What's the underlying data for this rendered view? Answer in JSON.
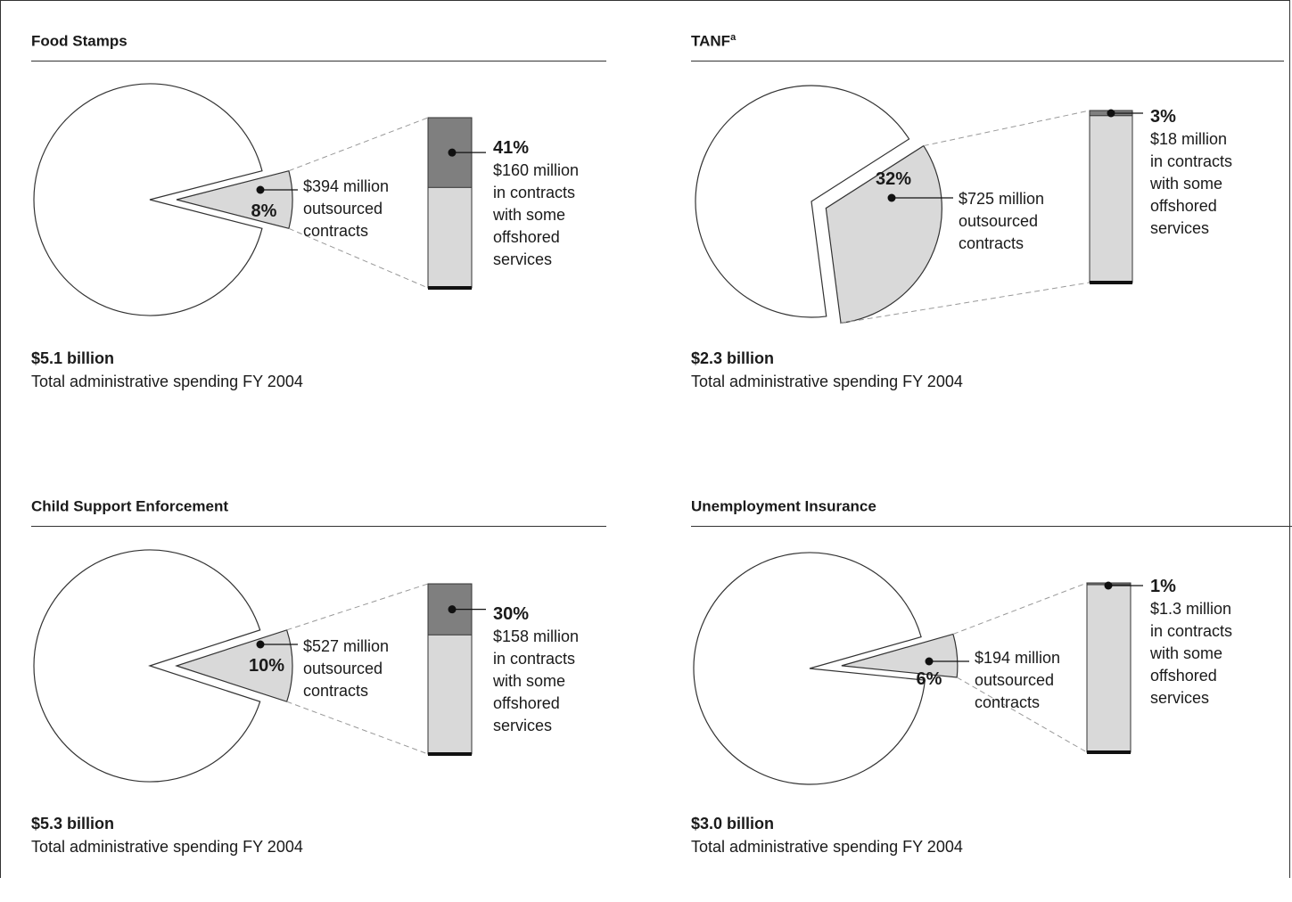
{
  "chart_data": [
    {
      "type": "pie",
      "title": "Food Stamps",
      "title_superscript": "",
      "total": "$5.1 billion",
      "caption": "Total administrative spending FY 2004",
      "slice_percent": 8,
      "slice_pct_label": "8%",
      "slice_label_lines": [
        "$394 million",
        "outsourced",
        "contracts"
      ],
      "bar_percent": 41,
      "bar_pct_label": "41%",
      "bar_label_lines": [
        "$160 million",
        "in contracts",
        "with some",
        "offshored",
        "services"
      ]
    },
    {
      "type": "pie",
      "title": "TANF",
      "title_superscript": "a",
      "total": "$2.3 billion",
      "caption": "Total administrative spending FY 2004",
      "slice_percent": 32,
      "slice_pct_label": "32%",
      "slice_label_lines": [
        "$725 million",
        "outsourced",
        "contracts"
      ],
      "bar_percent": 3,
      "bar_pct_label": "3%",
      "bar_label_lines": [
        "$18 million",
        "in contracts",
        "with some",
        "offshored",
        "services"
      ]
    },
    {
      "type": "pie",
      "title": "Child Support Enforcement",
      "title_superscript": "",
      "total": "$5.3 billion",
      "caption": "Total administrative spending FY 2004",
      "slice_percent": 10,
      "slice_pct_label": "10%",
      "slice_label_lines": [
        "$527 million",
        "outsourced",
        "contracts"
      ],
      "bar_percent": 30,
      "bar_pct_label": "30%",
      "bar_label_lines": [
        "$158 million",
        "in contracts",
        "with some",
        "offshored",
        "services"
      ]
    },
    {
      "type": "pie",
      "title": "Unemployment Insurance",
      "title_superscript": "",
      "total": "$3.0 billion",
      "caption": "Total administrative spending FY 2004",
      "slice_percent": 6,
      "slice_pct_label": "6%",
      "slice_label_lines": [
        "$194 million",
        "outsourced",
        "contracts"
      ],
      "bar_percent": 1,
      "bar_pct_label": "1%",
      "bar_label_lines": [
        "$1.3 million",
        "in contracts",
        "with some",
        "offshored",
        "services"
      ]
    }
  ],
  "colors": {
    "pie_fill": "#ffffff",
    "slice_fill": "#d9d9d9",
    "bar_fill": "#d9d9d9",
    "bar_highlight": "#7f7f7f",
    "stroke": "#333333"
  }
}
